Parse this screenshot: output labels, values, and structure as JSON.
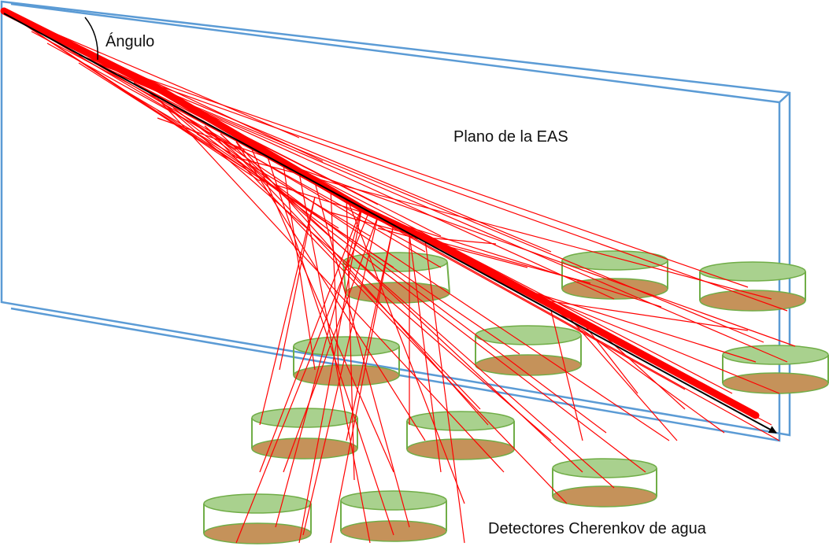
{
  "labels": {
    "angle": "Ángulo",
    "plane": "Plano de la EAS",
    "detectors": "Detectores Cherenkov de agua"
  },
  "colors": {
    "plane_edge": "#5b9bd5",
    "shower": "#ff0000",
    "axis": "#000000",
    "tank_top": "#a9d18e",
    "tank_bottom": "#c5925a",
    "tank_edge": "#70ad47",
    "tank_bottom_edge": "#a0784a"
  },
  "icons": {
    "axis_arrow": "arrowhead-icon",
    "angle_arc": "angle-arc-icon"
  }
}
